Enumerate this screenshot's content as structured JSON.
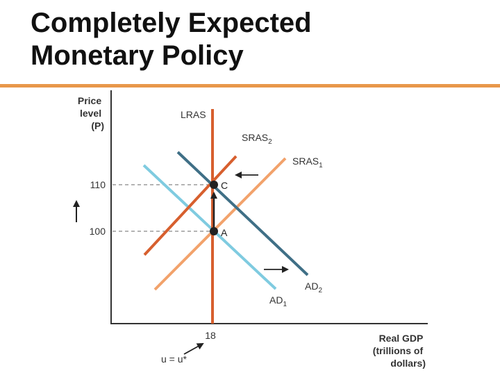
{
  "slide": {
    "title_line1": "Completely Expected",
    "title_line2": "Monetary Policy"
  },
  "colors": {
    "lras": "#d75f2e",
    "sras1": "#f2a26b",
    "sras2": "#d75f2e",
    "ad1": "#7fcbe0",
    "ad2": "#3f6f86",
    "axis": "#333333",
    "rule": "#e8974a"
  },
  "chart_data": {
    "type": "line",
    "ylabel_lines": [
      "Price",
      "level",
      "(P)"
    ],
    "xlabel_lines": [
      "Real GDP",
      "(trillions of",
      "dollars)"
    ],
    "y_ticks": [
      {
        "value": 100,
        "label": "100"
      },
      {
        "value": 110,
        "label": "110"
      }
    ],
    "x_ticks": [
      {
        "value": 18,
        "label": "18"
      }
    ],
    "series": [
      {
        "id": "lras",
        "label_main": "LRAS",
        "label_sub": "",
        "kind": "vertical",
        "x": 18
      },
      {
        "id": "sras1",
        "label_main": "SRAS",
        "label_sub": "1"
      },
      {
        "id": "sras2",
        "label_main": "SRAS",
        "label_sub": "2"
      },
      {
        "id": "ad1",
        "label_main": "AD",
        "label_sub": "1"
      },
      {
        "id": "ad2",
        "label_main": "AD",
        "label_sub": "2"
      }
    ],
    "points": [
      {
        "label": "A",
        "x": 18,
        "y": 100
      },
      {
        "label": "C",
        "x": 18,
        "y": 110
      }
    ],
    "annotations": {
      "unemployment": "u = u*"
    }
  }
}
